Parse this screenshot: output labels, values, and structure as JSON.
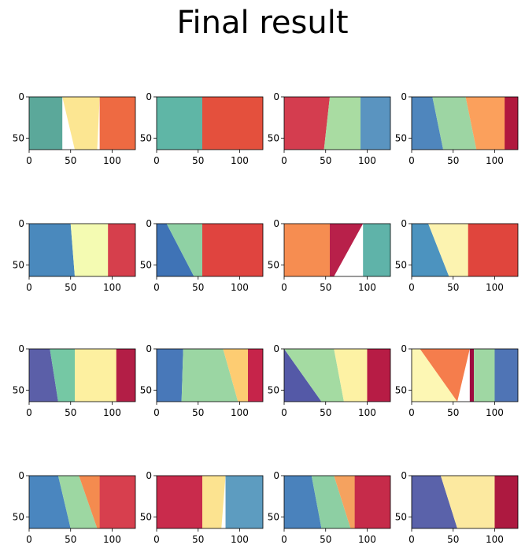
{
  "figure": {
    "title": "Final result"
  },
  "chart_data": {
    "type": "heatmap",
    "title": "Final result",
    "layout": "4x4 grid of segmentation maps",
    "colormap": "Spectral",
    "xlim": [
      0,
      128
    ],
    "ylim": [
      64,
      0
    ],
    "xticks": [
      0,
      50,
      100
    ],
    "yticks": [
      0,
      50
    ],
    "panels": [
      {
        "row": 0,
        "col": 0,
        "regions": [
          {
            "color": "#5ba89a",
            "from": [
              0,
              0
            ],
            "to": [
              40,
              0
            ]
          },
          {
            "color": "#fce692",
            "from": [
              40,
              0
            ],
            "to": [
              85,
              0
            ],
            "bottom": [
              55,
              82
            ]
          },
          {
            "color": "#ee6a42",
            "from": [
              85,
              0
            ],
            "to": [
              128,
              0
            ]
          }
        ]
      },
      {
        "row": 0,
        "col": 1,
        "regions": [
          {
            "color": "#5fb6a6",
            "from": [
              0,
              0
            ],
            "to": [
              55,
              0
            ],
            "bottom": [
              0,
              85
            ]
          },
          {
            "color": "#e4503d",
            "from": [
              55,
              0
            ],
            "to": [
              128,
              0
            ]
          }
        ]
      },
      {
        "row": 0,
        "col": 2,
        "regions": [
          {
            "color": "#d43d4f",
            "from": [
              0,
              0
            ],
            "to": [
              55,
              0
            ],
            "bottom": [
              0,
              48
            ]
          },
          {
            "color": "#a9dca2",
            "from": [
              55,
              0
            ],
            "to": [
              92,
              0
            ],
            "bottom": [
              48,
              95
            ]
          },
          {
            "color": "#5a94c0",
            "from": [
              92,
              0
            ],
            "to": [
              128,
              0
            ]
          }
        ]
      },
      {
        "row": 0,
        "col": 3,
        "regions": [
          {
            "color": "#4f86bd",
            "from": [
              0,
              0
            ],
            "to": [
              25,
              0
            ],
            "bottom": [
              0,
              38
            ]
          },
          {
            "color": "#9dd5a3",
            "from": [
              25,
              0
            ],
            "to": [
              65,
              0
            ],
            "bottom": [
              38,
              78
            ]
          },
          {
            "color": "#fba05c",
            "from": [
              65,
              0
            ],
            "to": [
              112,
              0
            ],
            "bottom": [
              78,
              120
            ]
          },
          {
            "color": "#b0193e",
            "from": [
              112,
              0
            ],
            "to": [
              128,
              0
            ]
          }
        ]
      },
      {
        "row": 1,
        "col": 0,
        "regions": [
          {
            "color": "#4a89bd",
            "from": [
              0,
              0
            ],
            "to": [
              50,
              0
            ],
            "bottom": [
              0,
              55
            ]
          },
          {
            "color": "#f4fbb2",
            "from": [
              50,
              0
            ],
            "to": [
              95,
              0
            ],
            "bottom": [
              55,
              105
            ]
          },
          {
            "color": "#d63f4c",
            "from": [
              95,
              0
            ],
            "to": [
              128,
              0
            ]
          }
        ]
      },
      {
        "row": 1,
        "col": 1,
        "regions": [
          {
            "color": "#3f73b6",
            "from": [
              0,
              0
            ],
            "to": [
              12,
              0
            ],
            "bottom": [
              0,
              45
            ]
          },
          {
            "color": "#8fd1a4",
            "from": [
              12,
              0
            ],
            "to": [
              55,
              0
            ],
            "bottom": [
              45,
              88
            ]
          },
          {
            "color": "#e0443f",
            "from": [
              55,
              0
            ],
            "to": [
              128,
              0
            ]
          }
        ]
      },
      {
        "row": 1,
        "col": 2,
        "regions": [
          {
            "color": "#f68d51",
            "from": [
              0,
              0
            ],
            "to": [
              55,
              0
            ],
            "bottom": [
              0,
              55
            ]
          },
          {
            "color": "#b8204a",
            "from": [
              55,
              0
            ],
            "to": [
              95,
              0
            ],
            "bottom": [
              55,
              60
            ]
          },
          {
            "color": "#5fb3a9",
            "from": [
              95,
              0
            ],
            "to": [
              128,
              0
            ]
          }
        ]
      },
      {
        "row": 1,
        "col": 3,
        "regions": [
          {
            "color": "#4c93bf",
            "from": [
              0,
              0
            ],
            "to": [
              20,
              0
            ],
            "bottom": [
              0,
              45
            ]
          },
          {
            "color": "#fcf3b0",
            "from": [
              20,
              0
            ],
            "to": [
              68,
              0
            ],
            "bottom": [
              45,
              92
            ]
          },
          {
            "color": "#e0453d",
            "from": [
              68,
              0
            ],
            "to": [
              128,
              0
            ]
          }
        ]
      },
      {
        "row": 2,
        "col": 0,
        "regions": [
          {
            "color": "#5b5fa8",
            "from": [
              0,
              0
            ],
            "to": [
              25,
              0
            ],
            "bottom": [
              0,
              35
            ]
          },
          {
            "color": "#75c8a4",
            "from": [
              25,
              0
            ],
            "to": [
              55,
              0
            ],
            "bottom": [
              35,
              55
            ]
          },
          {
            "color": "#fdf0a0",
            "from": [
              55,
              0
            ],
            "to": [
              105,
              0
            ],
            "bottom": [
              55,
              120
            ]
          },
          {
            "color": "#b31e46",
            "from": [
              105,
              0
            ],
            "to": [
              128,
              0
            ]
          }
        ]
      },
      {
        "row": 2,
        "col": 1,
        "regions": [
          {
            "color": "#4878b9",
            "from": [
              0,
              0
            ],
            "to": [
              32,
              0
            ],
            "bottom": [
              0,
              30
            ]
          },
          {
            "color": "#9bd6a3",
            "from": [
              32,
              0
            ],
            "to": [
              80,
              0
            ],
            "bottom": [
              30,
              98
            ]
          },
          {
            "color": "#fdcc72",
            "from": [
              80,
              0
            ],
            "to": [
              110,
              0
            ],
            "bottom": [
              98,
              118
            ]
          },
          {
            "color": "#c6244a",
            "from": [
              110,
              0
            ],
            "to": [
              128,
              0
            ]
          }
        ]
      },
      {
        "row": 2,
        "col": 2,
        "regions": [
          {
            "color": "#5459a7",
            "from": [
              0,
              0
            ],
            "to": [
              0,
              0
            ],
            "bottom": [
              0,
              45
            ]
          },
          {
            "color": "#a4dba2",
            "from": [
              0,
              0
            ],
            "to": [
              60,
              0
            ],
            "bottom": [
              45,
              72
            ]
          },
          {
            "color": "#fdf2a4",
            "from": [
              60,
              0
            ],
            "to": [
              100,
              0
            ],
            "bottom": [
              72,
              110
            ]
          },
          {
            "color": "#b71c45",
            "from": [
              100,
              0
            ],
            "to": [
              128,
              0
            ]
          }
        ]
      },
      {
        "row": 2,
        "col": 3,
        "regions": [
          {
            "color": "#fdf7b4",
            "from": [
              0,
              0
            ],
            "to": [
              10,
              0
            ],
            "bottom": [
              0,
              55
            ]
          },
          {
            "color": "#f57d4c",
            "from": [
              10,
              0
            ],
            "to": [
              70,
              0
            ],
            "bottom": [
              55,
              55
            ]
          },
          {
            "color": "#9e0b3f",
            "from": [
              70,
              0
            ],
            "to": [
              75,
              0
            ],
            "bottom": [
              70,
              75
            ]
          },
          {
            "color": "#9fd7a3",
            "from": [
              75,
              0
            ],
            "to": [
              100,
              0
            ],
            "bottom": [
              75,
              108
            ]
          },
          {
            "color": "#4f74b5",
            "from": [
              100,
              0
            ],
            "to": [
              128,
              0
            ]
          }
        ]
      },
      {
        "row": 3,
        "col": 0,
        "regions": [
          {
            "color": "#4a86bf",
            "from": [
              0,
              0
            ],
            "to": [
              35,
              0
            ],
            "bottom": [
              0,
              50
            ]
          },
          {
            "color": "#9dd7a2",
            "from": [
              35,
              0
            ],
            "to": [
              60,
              0
            ],
            "bottom": [
              50,
              82
            ]
          },
          {
            "color": "#f48b4f",
            "from": [
              60,
              0
            ],
            "to": [
              85,
              0
            ],
            "bottom": [
              82,
              110
            ]
          },
          {
            "color": "#d73f4e",
            "from": [
              85,
              0
            ],
            "to": [
              128,
              0
            ]
          }
        ]
      },
      {
        "row": 3,
        "col": 1,
        "regions": [
          {
            "color": "#c92b4c",
            "from": [
              0,
              0
            ],
            "to": [
              55,
              0
            ],
            "bottom": [
              0,
              55
            ]
          },
          {
            "color": "#fce390",
            "from": [
              55,
              0
            ],
            "to": [
              83,
              0
            ],
            "bottom": [
              55,
              78
            ]
          },
          {
            "color": "#5d9cc0",
            "from": [
              83,
              0
            ],
            "to": [
              128,
              0
            ]
          }
        ]
      },
      {
        "row": 3,
        "col": 2,
        "regions": [
          {
            "color": "#4a82bc",
            "from": [
              0,
              0
            ],
            "to": [
              33,
              0
            ],
            "bottom": [
              0,
              45
            ]
          },
          {
            "color": "#8dcfa3",
            "from": [
              33,
              0
            ],
            "to": [
              60,
              0
            ],
            "bottom": [
              45,
              80
            ]
          },
          {
            "color": "#f5a25f",
            "from": [
              60,
              0
            ],
            "to": [
              85,
              0
            ],
            "bottom": [
              80,
              110
            ]
          },
          {
            "color": "#c62b4a",
            "from": [
              85,
              0
            ],
            "to": [
              128,
              0
            ]
          }
        ]
      },
      {
        "row": 3,
        "col": 3,
        "regions": [
          {
            "color": "#5a62aa",
            "from": [
              0,
              0
            ],
            "to": [
              35,
              0
            ],
            "bottom": [
              0,
              55
            ]
          },
          {
            "color": "#fce9a0",
            "from": [
              35,
              0
            ],
            "to": [
              100,
              0
            ],
            "bottom": [
              55,
              110
            ]
          },
          {
            "color": "#ad1940",
            "from": [
              100,
              0
            ],
            "to": [
              128,
              0
            ]
          }
        ]
      }
    ]
  }
}
